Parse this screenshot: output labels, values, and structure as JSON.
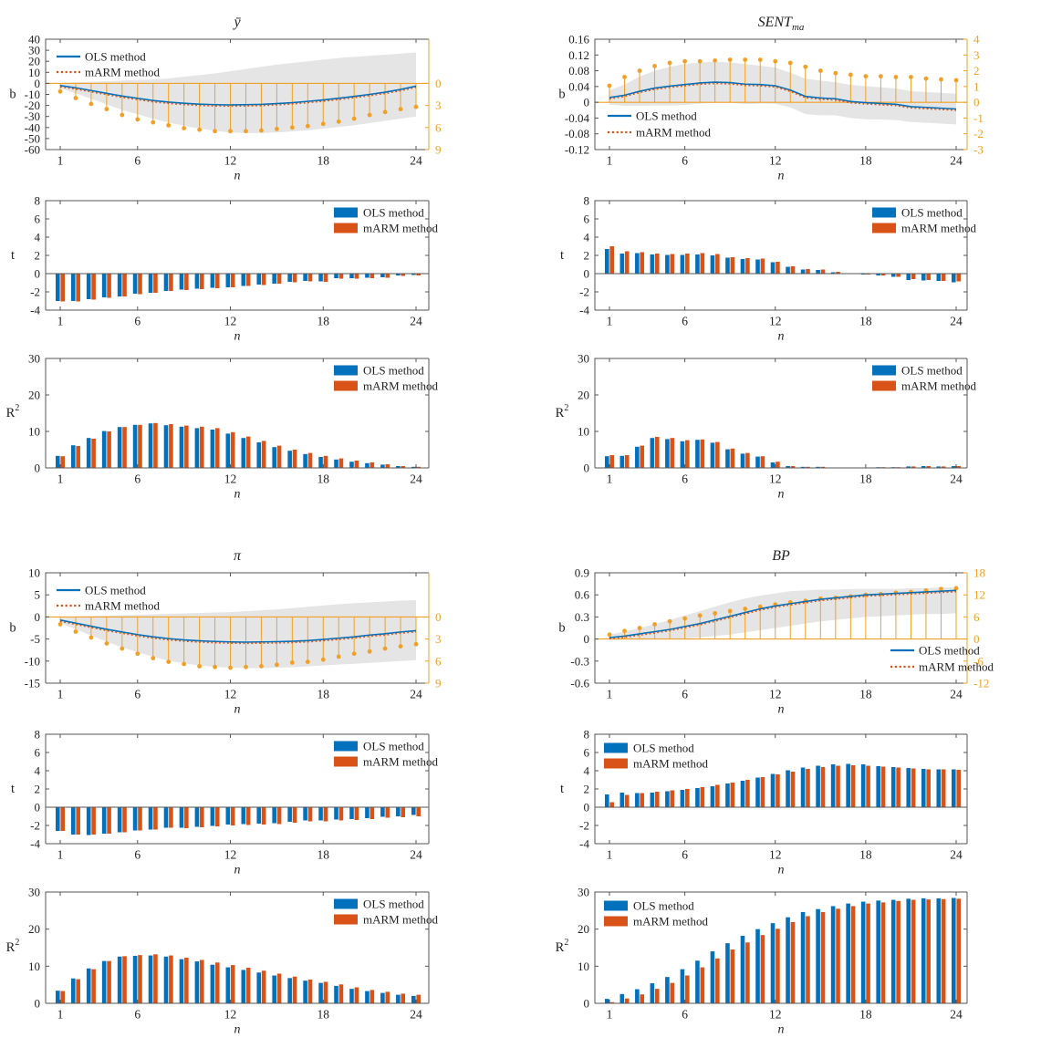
{
  "figure": {
    "legend": {
      "ols_label": "OLS method",
      "marm_label": "mARM method"
    },
    "colors": {
      "ols": "#0072BD",
      "marm": "#D95319",
      "orange": "#F2A025",
      "band": "#E5E5E5",
      "axis": "#555555",
      "text": "#222222"
    },
    "x_axis": {
      "label": "n",
      "ticks": [
        1,
        6,
        12,
        18,
        24
      ]
    },
    "x_values": [
      1,
      2,
      3,
      4,
      5,
      6,
      7,
      8,
      9,
      10,
      11,
      12,
      13,
      14,
      15,
      16,
      17,
      18,
      19,
      20,
      21,
      22,
      23,
      24
    ]
  },
  "chart_data": [
    {
      "panel": "ybar",
      "title": "ȳ",
      "title_sub": "",
      "b": {
        "type": "line+band+stem dual-axis",
        "ylabel": "b",
        "ylabel_sup": "",
        "ylim": [
          -60,
          40
        ],
        "yticks": [
          40,
          30,
          20,
          10,
          0,
          -10,
          -20,
          -30,
          -40,
          -50,
          -60
        ],
        "right_ticks": [
          0,
          3,
          6,
          9
        ],
        "right_range": [
          -6,
          9
        ],
        "legend_pos": "top-left",
        "ols_line": [
          -2,
          -4,
          -6.5,
          -9,
          -11.5,
          -13.5,
          -15.5,
          -17,
          -18,
          -18.8,
          -19.3,
          -19.5,
          -19.3,
          -19,
          -18.3,
          -17.5,
          -16.3,
          -15,
          -13.5,
          -11.8,
          -10,
          -8,
          -5.5,
          -2.5
        ],
        "band_upper": [
          0.5,
          1,
          1.5,
          2,
          2.5,
          3,
          3.5,
          4.5,
          6,
          7.5,
          9,
          11,
          13,
          15,
          17,
          18.5,
          20,
          21.5,
          23,
          24,
          25,
          26,
          27,
          28
        ],
        "band_lower": [
          -4.5,
          -9,
          -14,
          -19,
          -24,
          -28,
          -32,
          -35.5,
          -38.5,
          -41,
          -43,
          -44.5,
          -45,
          -45,
          -44.5,
          -43.5,
          -42.5,
          -41,
          -39.5,
          -38,
          -36,
          -34,
          -32,
          -30
        ],
        "stems_right_axis": [
          1.1,
          2.0,
          2.8,
          3.5,
          4.3,
          4.9,
          5.3,
          5.7,
          6.1,
          6.3,
          6.5,
          6.5,
          6.5,
          6.4,
          6.2,
          6.0,
          5.8,
          5.5,
          5.2,
          4.8,
          4.3,
          3.9,
          3.5,
          3.2
        ]
      },
      "t": {
        "type": "grouped-bar",
        "ylabel": "t",
        "ylabel_sup": "",
        "ylim": [
          -4,
          8
        ],
        "yticks": [
          8,
          6,
          4,
          2,
          0,
          -2,
          -4
        ],
        "legend_pos": "top-right",
        "ols": [
          -3,
          -3,
          -2.8,
          -2.6,
          -2.5,
          -2.2,
          -2.1,
          -1.9,
          -1.75,
          -1.65,
          -1.55,
          -1.5,
          -1.35,
          -1.2,
          -1.1,
          -0.9,
          -0.8,
          -0.85,
          -0.5,
          -0.5,
          -0.45,
          -0.4,
          -0.2,
          -0.15
        ],
        "marm": [
          -3.05,
          -3.05,
          -2.85,
          -2.65,
          -2.5,
          -2.25,
          -2.1,
          -1.9,
          -1.8,
          -1.7,
          -1.6,
          -1.5,
          -1.35,
          -1.25,
          -1.1,
          -0.95,
          -0.85,
          -0.9,
          -0.55,
          -0.55,
          -0.5,
          -0.45,
          -0.25,
          -0.2
        ]
      },
      "r2": {
        "type": "grouped-bar",
        "ylabel": "R",
        "ylabel_sup": "2",
        "ylim": [
          0,
          30
        ],
        "yticks": [
          30,
          20,
          10,
          0
        ],
        "legend_pos": "top-right",
        "ols": [
          3.3,
          6.2,
          8.2,
          10.1,
          11.2,
          11.8,
          12.2,
          11.7,
          11.3,
          10.9,
          10.5,
          9.4,
          8.2,
          7.0,
          5.7,
          4.7,
          3.8,
          3.0,
          2.3,
          1.7,
          1.3,
          0.9,
          0.5,
          0.3
        ],
        "marm": [
          3.2,
          6.0,
          8.0,
          10.0,
          11.2,
          11.8,
          12.3,
          12.0,
          11.6,
          11.3,
          10.9,
          9.8,
          8.6,
          7.4,
          6.1,
          5.0,
          4.1,
          3.3,
          2.6,
          2.0,
          1.5,
          1.0,
          0.5,
          0.3
        ]
      }
    },
    {
      "panel": "sent_ma",
      "title": "SENT",
      "title_sub": "ma",
      "b": {
        "type": "line+band+stem dual-axis",
        "ylabel": "b",
        "ylabel_sup": "",
        "ylim": [
          -0.12,
          0.16
        ],
        "yticks": [
          0.16,
          0.12,
          0.08,
          0.04,
          0,
          -0.04,
          -0.08,
          -0.12
        ],
        "right_ticks": [
          4,
          3,
          2,
          1,
          0,
          -1,
          -2,
          -3
        ],
        "right_range": [
          4,
          -3
        ],
        "legend_pos": "bottom-left",
        "ols_line": [
          0.012,
          0.018,
          0.028,
          0.036,
          0.041,
          0.045,
          0.049,
          0.051,
          0.05,
          0.046,
          0.045,
          0.042,
          0.031,
          0.015,
          0.011,
          0.009,
          0.002,
          -0.001,
          -0.003,
          -0.005,
          -0.011,
          -0.013,
          -0.015,
          -0.017
        ],
        "band_upper": [
          0.03,
          0.045,
          0.065,
          0.08,
          0.09,
          0.097,
          0.101,
          0.103,
          0.101,
          0.097,
          0.093,
          0.088,
          0.075,
          0.06,
          0.055,
          0.051,
          0.044,
          0.041,
          0.038,
          0.035,
          0.028,
          0.026,
          0.024,
          0.022
        ],
        "band_lower": [
          -0.006,
          -0.009,
          -0.009,
          -0.008,
          -0.008,
          -0.007,
          -0.003,
          -0.001,
          -0.001,
          -0.005,
          -0.003,
          -0.004,
          -0.013,
          -0.03,
          -0.033,
          -0.033,
          -0.04,
          -0.043,
          -0.044,
          -0.045,
          -0.05,
          -0.052,
          -0.054,
          -0.056
        ],
        "stems_right_axis": [
          1.05,
          1.6,
          2.0,
          2.3,
          2.5,
          2.6,
          2.6,
          2.65,
          2.7,
          2.7,
          2.7,
          2.6,
          2.5,
          2.25,
          2.0,
          1.85,
          1.75,
          1.65,
          1.65,
          1.6,
          1.6,
          1.5,
          1.45,
          1.4
        ]
      },
      "t": {
        "type": "grouped-bar",
        "ylabel": "t",
        "ylabel_sup": "",
        "ylim": [
          -4,
          8
        ],
        "yticks": [
          8,
          6,
          4,
          2,
          0,
          -2,
          -4
        ],
        "legend_pos": "top-right",
        "ols": [
          2.7,
          2.2,
          2.25,
          2.1,
          2.05,
          2.05,
          2.1,
          2.0,
          1.75,
          1.6,
          1.55,
          1.25,
          0.75,
          0.45,
          0.4,
          0.15,
          -0.05,
          -0.1,
          -0.2,
          -0.35,
          -0.7,
          -0.75,
          -0.8,
          -0.95
        ],
        "marm": [
          3.0,
          2.45,
          2.35,
          2.2,
          2.15,
          2.2,
          2.25,
          2.15,
          1.8,
          1.7,
          1.65,
          1.3,
          0.8,
          0.5,
          0.45,
          0.2,
          -0.05,
          -0.1,
          -0.2,
          -0.35,
          -0.6,
          -0.7,
          -0.8,
          -0.85
        ]
      },
      "r2": {
        "type": "grouped-bar",
        "ylabel": "R",
        "ylabel_sup": "2",
        "ylim": [
          0,
          30
        ],
        "yticks": [
          30,
          20,
          10,
          0
        ],
        "legend_pos": "top-right",
        "ols": [
          3.2,
          3.3,
          5.8,
          8.2,
          7.9,
          7.3,
          7.7,
          6.9,
          5.1,
          3.9,
          3.1,
          1.5,
          0.5,
          0.3,
          0.3,
          0.1,
          0.1,
          0.1,
          0.2,
          0.2,
          0.4,
          0.5,
          0.4,
          0.5
        ],
        "marm": [
          3.5,
          3.5,
          6.1,
          8.5,
          8.2,
          7.6,
          7.8,
          7.1,
          5.3,
          4.1,
          3.2,
          1.7,
          0.5,
          0.3,
          0.3,
          0.1,
          0.1,
          0.1,
          0.2,
          0.2,
          0.4,
          0.5,
          0.4,
          0.5
        ]
      }
    },
    {
      "panel": "pi",
      "title": "π",
      "title_sub": "",
      "b": {
        "type": "line+band+stem dual-axis",
        "ylabel": "b",
        "ylabel_sup": "",
        "ylim": [
          -15,
          10
        ],
        "yticks": [
          10,
          5,
          0,
          -5,
          -10,
          -15
        ],
        "right_ticks": [
          0,
          3,
          6,
          9
        ],
        "right_range": [
          -6,
          9
        ],
        "legend_pos": "top-left",
        "ols_line": [
          -0.7,
          -1.4,
          -2.1,
          -2.8,
          -3.4,
          -4.0,
          -4.5,
          -4.9,
          -5.2,
          -5.4,
          -5.55,
          -5.65,
          -5.7,
          -5.65,
          -5.6,
          -5.5,
          -5.35,
          -5.1,
          -4.8,
          -4.5,
          -4.1,
          -3.8,
          -3.4,
          -3.1
        ],
        "band_upper": [
          0,
          0.1,
          0.2,
          0.3,
          0.4,
          0.5,
          0.6,
          0.7,
          0.8,
          0.9,
          1.0,
          1.1,
          1.3,
          1.5,
          1.7,
          2.0,
          2.3,
          2.6,
          2.9,
          3.1,
          3.3,
          3.5,
          3.7,
          3.8
        ],
        "band_lower": [
          -1.4,
          -2.8,
          -4.2,
          -5.6,
          -6.9,
          -8.0,
          -9.0,
          -9.9,
          -10.5,
          -11.0,
          -11.3,
          -11.5,
          -11.6,
          -11.6,
          -11.5,
          -11.4,
          -11.2,
          -11.0,
          -10.8,
          -10.6,
          -10.4,
          -10.2,
          -10.0,
          -9.8
        ],
        "stems_right_axis": [
          1.0,
          2.0,
          2.8,
          3.6,
          4.3,
          5.0,
          5.6,
          6.1,
          6.4,
          6.7,
          6.8,
          6.9,
          6.8,
          6.7,
          6.5,
          6.2,
          6.1,
          5.8,
          5.4,
          5.0,
          4.7,
          4.3,
          4.0,
          3.7
        ]
      },
      "t": {
        "type": "grouped-bar",
        "ylabel": "t",
        "ylabel_sup": "",
        "ylim": [
          -4,
          8
        ],
        "yticks": [
          8,
          6,
          4,
          2,
          0,
          -2,
          -4
        ],
        "legend_pos": "top-right",
        "ols": [
          -2.6,
          -3.0,
          -3.05,
          -2.9,
          -2.75,
          -2.55,
          -2.45,
          -2.25,
          -2.25,
          -2.15,
          -2.05,
          -1.9,
          -1.85,
          -1.8,
          -1.75,
          -1.6,
          -1.45,
          -1.45,
          -1.35,
          -1.3,
          -1.2,
          -1.05,
          -1.0,
          -0.85
        ],
        "marm": [
          -2.6,
          -3.0,
          -3.0,
          -2.9,
          -2.75,
          -2.55,
          -2.45,
          -2.25,
          -2.3,
          -2.2,
          -2.1,
          -2.0,
          -1.95,
          -1.9,
          -1.85,
          -1.7,
          -1.55,
          -1.55,
          -1.45,
          -1.4,
          -1.3,
          -1.15,
          -1.1,
          -1.0
        ]
      },
      "r2": {
        "type": "grouped-bar",
        "ylabel": "R",
        "ylabel_sup": "2",
        "ylim": [
          0,
          30
        ],
        "yticks": [
          30,
          20,
          10,
          0
        ],
        "legend_pos": "top-right",
        "ols": [
          3.4,
          6.7,
          9.4,
          11.4,
          12.6,
          12.8,
          12.9,
          12.6,
          11.9,
          11.3,
          10.4,
          9.7,
          9.0,
          8.3,
          7.5,
          6.8,
          6.1,
          5.5,
          4.7,
          3.9,
          3.3,
          2.8,
          2.3,
          2.0
        ],
        "marm": [
          3.3,
          6.5,
          9.2,
          11.4,
          12.7,
          13.0,
          13.2,
          12.9,
          12.3,
          11.7,
          11.0,
          10.3,
          9.6,
          8.8,
          8.0,
          7.2,
          6.4,
          5.8,
          5.1,
          4.3,
          3.6,
          3.1,
          2.6,
          2.3
        ]
      }
    },
    {
      "panel": "bp",
      "title": "BP",
      "title_sub": "",
      "b": {
        "type": "line+band+stem dual-axis",
        "ylabel": "b",
        "ylabel_sup": "",
        "ylim": [
          -0.6,
          0.9
        ],
        "yticks": [
          0.9,
          0.6,
          0.3,
          0,
          -0.3,
          -0.6
        ],
        "right_ticks": [
          18,
          12,
          6,
          0,
          -6,
          -12
        ],
        "right_range": [
          18,
          -12
        ],
        "legend_pos": "bottom-right",
        "ols_line": [
          0.02,
          0.04,
          0.07,
          0.1,
          0.13,
          0.17,
          0.21,
          0.26,
          0.31,
          0.36,
          0.41,
          0.45,
          0.48,
          0.51,
          0.54,
          0.56,
          0.58,
          0.6,
          0.61,
          0.62,
          0.63,
          0.64,
          0.65,
          0.66
        ],
        "band_upper": [
          0.06,
          0.1,
          0.15,
          0.2,
          0.26,
          0.32,
          0.38,
          0.44,
          0.5,
          0.55,
          0.59,
          0.62,
          0.65,
          0.66,
          0.67,
          0.67,
          0.68,
          0.68,
          0.68,
          0.68,
          0.69,
          0.69,
          0.7,
          0.7
        ],
        "band_lower": [
          -0.01,
          -0.01,
          -0.01,
          0.0,
          0.0,
          0.01,
          0.02,
          0.04,
          0.06,
          0.09,
          0.12,
          0.15,
          0.18,
          0.21,
          0.24,
          0.26,
          0.28,
          0.3,
          0.31,
          0.32,
          0.33,
          0.34,
          0.34,
          0.35
        ],
        "stems_right_axis": [
          1.2,
          2.2,
          3.0,
          4.0,
          4.8,
          5.6,
          6.4,
          7.0,
          7.6,
          8.2,
          8.8,
          9.4,
          10.0,
          10.4,
          11.0,
          11.2,
          11.6,
          12.0,
          12.2,
          12.6,
          12.8,
          13.2,
          13.6,
          13.8
        ]
      },
      "t": {
        "type": "grouped-bar",
        "ylabel": "t",
        "ylabel_sup": "",
        "ylim": [
          -4,
          8
        ],
        "yticks": [
          8,
          6,
          4,
          2,
          0,
          -2,
          -4
        ],
        "legend_pos": "top-left",
        "ols": [
          1.4,
          1.6,
          1.55,
          1.6,
          1.75,
          1.9,
          2.1,
          2.3,
          2.6,
          2.9,
          3.25,
          3.65,
          4.05,
          4.35,
          4.55,
          4.7,
          4.75,
          4.7,
          4.5,
          4.4,
          4.3,
          4.2,
          4.15,
          4.15
        ],
        "marm": [
          0.55,
          1.35,
          1.55,
          1.7,
          1.85,
          2.0,
          2.2,
          2.45,
          2.7,
          3.0,
          3.3,
          3.6,
          3.9,
          4.2,
          4.4,
          4.55,
          4.6,
          4.55,
          4.45,
          4.35,
          4.25,
          4.15,
          4.15,
          4.1
        ]
      },
      "r2": {
        "type": "grouped-bar",
        "ylabel": "R",
        "ylabel_sup": "2",
        "ylim": [
          0,
          30
        ],
        "yticks": [
          30,
          20,
          10,
          0
        ],
        "legend_pos": "top-left",
        "ols": [
          1.2,
          2.5,
          3.8,
          5.4,
          7.1,
          9.2,
          11.5,
          14.0,
          16.2,
          18.2,
          20.0,
          21.6,
          23.2,
          24.6,
          25.4,
          26.2,
          26.9,
          27.4,
          27.7,
          27.9,
          28.2,
          28.3,
          28.3,
          28.4
        ],
        "marm": [
          0.3,
          1.3,
          2.4,
          3.9,
          5.5,
          7.5,
          9.7,
          12.1,
          14.5,
          16.4,
          18.4,
          20.1,
          21.9,
          23.5,
          24.6,
          25.5,
          26.2,
          26.9,
          27.2,
          27.6,
          27.9,
          28.0,
          28.1,
          28.2
        ]
      }
    }
  ]
}
